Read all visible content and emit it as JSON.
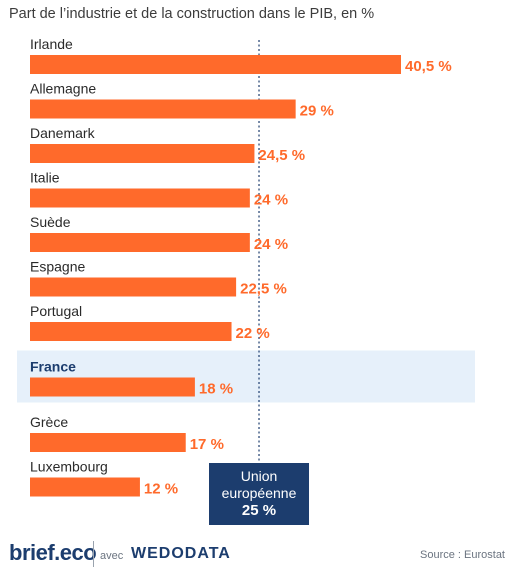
{
  "chart_data": {
    "type": "bar",
    "orientation": "horizontal",
    "title": "Part de l’industrie et de la construction dans le PIB, en %",
    "categories": [
      "Irlande",
      "Allemagne",
      "Danemark",
      "Italie",
      "Suède",
      "Espagne",
      "Portugal",
      "France",
      "Grèce",
      "Luxembourg"
    ],
    "values": [
      40.5,
      29,
      24.5,
      24,
      24,
      22.5,
      22,
      18,
      17,
      12
    ],
    "value_labels": [
      "40,5 %",
      "29 %",
      "24,5 %",
      "24 %",
      "24 %",
      "22,5 %",
      "22 %",
      "18 %",
      "17 %",
      "12 %"
    ],
    "highlight": "France",
    "reference_line": {
      "value": 25,
      "label_lines": [
        "Union",
        "européenne"
      ],
      "value_label": "25 %"
    },
    "xlim": [
      0,
      40.5
    ],
    "grid": false,
    "colors": {
      "bar": "#ff6a2b",
      "value_text": "#ff6a2b",
      "highlight_band": "#e6f0fa",
      "reference_box": "#1c3d6e",
      "reference_line": "#1c3d6e"
    }
  },
  "footer": {
    "logo": "brief.eco",
    "avec": "avec",
    "partner": "WEDODATA",
    "source": "Source : Eurostat"
  }
}
